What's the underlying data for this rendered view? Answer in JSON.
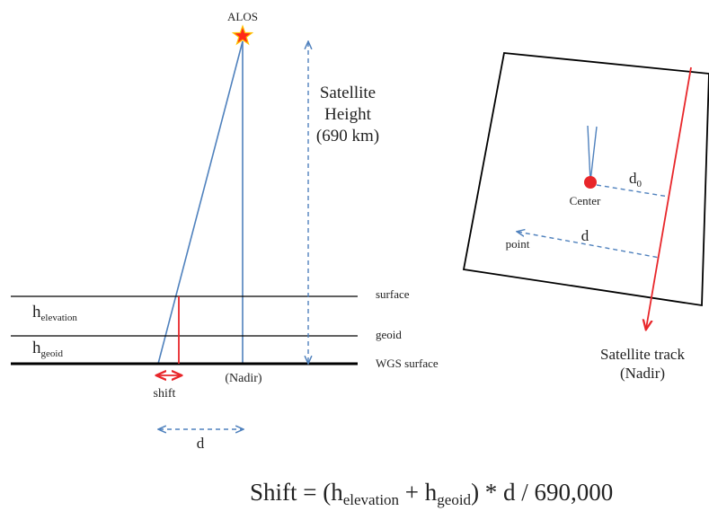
{
  "left_diagram": {
    "satellite_label": "ALOS",
    "height_label_line1": "Satellite",
    "height_label_line2": "Height",
    "height_label_line3": "(690 km)",
    "surface_label": "surface",
    "geoid_label": "geoid",
    "wgs_label": "WGS surface",
    "h_letter": "h",
    "elevation_sub": "elevation",
    "geoid_sub": "geoid",
    "shift_label": "shift",
    "nadir_label": "(Nadir)",
    "d_label": "d"
  },
  "right_diagram": {
    "center_label": "Center",
    "d0_letter": "d",
    "d0_sub": "0",
    "d_label": "d",
    "point_label": "point",
    "track_label_line1": "Satellite track",
    "track_label_line2": "(Nadir)"
  },
  "formula": {
    "lhs": "Shift = (h",
    "sub1": "elevation",
    "plus": " + h",
    "sub2": "geoid",
    "rhs": ")  * d / 690,000"
  },
  "colors": {
    "line_blue": "#4f81bd",
    "dashed_blue": "#4f81bd",
    "red": "#e8262a",
    "star_fill": "#ff2a1a",
    "star_stroke": "#ffc000",
    "black": "#000000"
  }
}
